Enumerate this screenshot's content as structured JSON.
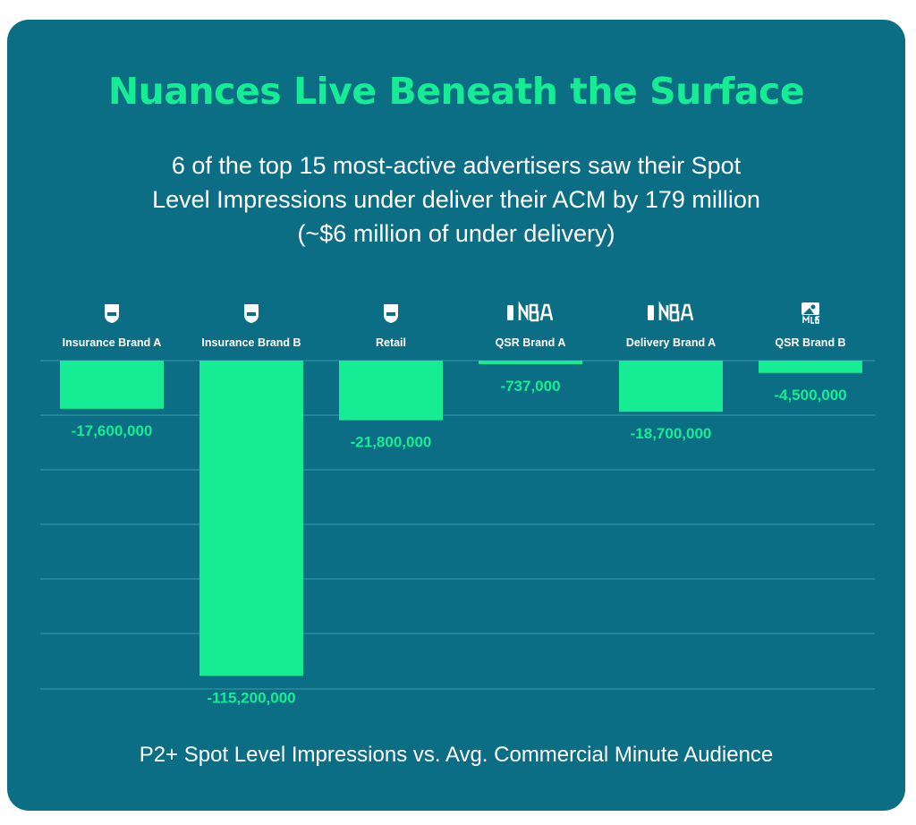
{
  "header": {
    "title": "Nuances Live Beneath the Surface",
    "subtitle_line1": "6 of the top 15 most-active advertisers saw their Spot",
    "subtitle_line2": "Level Impressions under deliver their ACM by 179 million",
    "subtitle_line3": "(~$6 million of under delivery)"
  },
  "footer": {
    "caption": "P2+ Spot Level Impressions vs. Avg. Commercial Minute Audience"
  },
  "colors": {
    "background": "#0b6e84",
    "accent": "#16ec94",
    "text": "#ffffff",
    "grid": "#2a8aa0"
  },
  "chart_data": {
    "type": "bar",
    "orientation": "vertical",
    "baseline": 0,
    "ylim": [
      -120000000,
      0
    ],
    "grid": true,
    "categories": [
      "Insurance Brand A",
      "Insurance Brand B",
      "Retail",
      "QSR Brand A",
      "Delivery Brand A",
      "QSR Brand B"
    ],
    "leagues": [
      "NFL",
      "NFL",
      "NFL",
      "NBA",
      "NBA",
      "MLB"
    ],
    "league_icons": [
      "nfl-shield-icon",
      "nfl-shield-icon",
      "nfl-shield-icon",
      "nba-logo-icon",
      "nba-logo-icon",
      "mlb-logo-icon"
    ],
    "values": [
      -17600000,
      -115200000,
      -21800000,
      -737000,
      -18700000,
      -4500000
    ],
    "value_labels": [
      "-17,600,000",
      "-115,200,000",
      "-21,800,000",
      "-737,000",
      "-18,700,000",
      "-4,500,000"
    ]
  }
}
